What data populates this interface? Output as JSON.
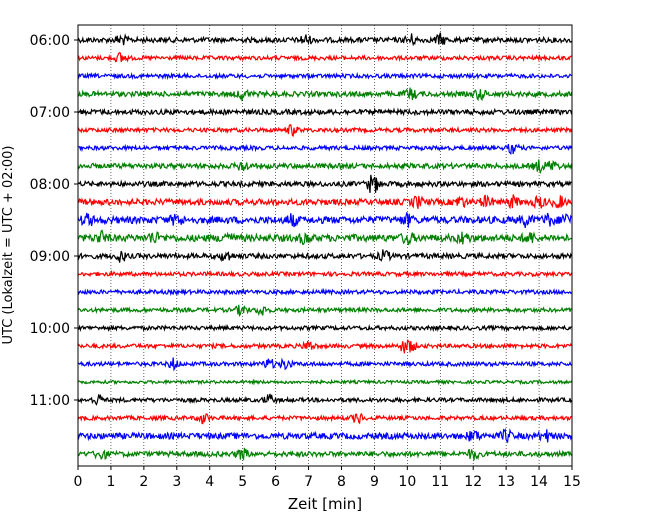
{
  "chart_data": {
    "type": "line",
    "title": "",
    "xlabel": "Zeit  [min]",
    "ylabel": "UTC (Lokalzeit = UTC + 02:00)",
    "xlim": [
      0,
      15
    ],
    "xticks": [
      "0",
      "1",
      "2",
      "3",
      "4",
      "5",
      "6",
      "7",
      "8",
      "9",
      "10",
      "11",
      "12",
      "13",
      "14",
      "15"
    ],
    "yticks": [
      "06:00",
      "07:00",
      "08:00",
      "09:00",
      "10:00",
      "11:00"
    ],
    "grid": "vertical dotted",
    "colors": [
      "#000000",
      "#ff0000",
      "#0000ff",
      "#008000"
    ],
    "series": [
      {
        "values": [
          1.3,
          6.9,
          10.1,
          11.0
        ],
        "amp": 2.5
      },
      {
        "values": [
          1.3
        ],
        "amp": 2
      },
      {
        "values": [],
        "amp": 2
      },
      {
        "values": [
          5.0,
          10.1,
          12.2
        ],
        "amp": 2.5
      },
      {
        "values": [],
        "amp": 2.5
      },
      {
        "values": [
          6.5
        ],
        "amp": 2
      },
      {
        "values": [
          13.2
        ],
        "amp": 2
      },
      {
        "values": [
          5.0,
          14.0,
          14.4
        ],
        "amp": 2.5
      },
      {
        "values": [
          8.9,
          9.0
        ],
        "amp": 2.5
      },
      {
        "values": [
          10.3,
          11.6,
          12.4,
          13.2,
          14.0,
          14.6
        ],
        "amp": 3
      },
      {
        "values": [
          0.3,
          3.0,
          6.5,
          10.0,
          13.6,
          14.3,
          14.8
        ],
        "amp": 3.5
      },
      {
        "values": [
          0.7,
          2.3,
          4.5,
          6.9,
          10.0,
          11.7,
          13.7
        ],
        "amp": 3.5
      },
      {
        "values": [
          1.3,
          4.5,
          9.3
        ],
        "amp": 2.5
      },
      {
        "values": [],
        "amp": 2
      },
      {
        "values": [],
        "amp": 2
      },
      {
        "values": [
          4.97,
          5.6
        ],
        "amp": 2
      },
      {
        "values": [],
        "amp": 2
      },
      {
        "values": [
          7.0,
          9.9,
          10.1
        ],
        "amp": 2
      },
      {
        "values": [
          2.9,
          5.8,
          6.3
        ],
        "amp": 2
      },
      {
        "values": [],
        "amp": 1.5
      },
      {
        "values": [
          0.6,
          5.8
        ],
        "amp": 2
      },
      {
        "values": [
          3.8,
          8.5
        ],
        "amp": 2
      },
      {
        "values": [
          12.0,
          13.0,
          14.2
        ],
        "amp": 3
      },
      {
        "values": [
          0.7,
          5.0,
          12.0
        ],
        "amp": 2.5
      }
    ]
  }
}
